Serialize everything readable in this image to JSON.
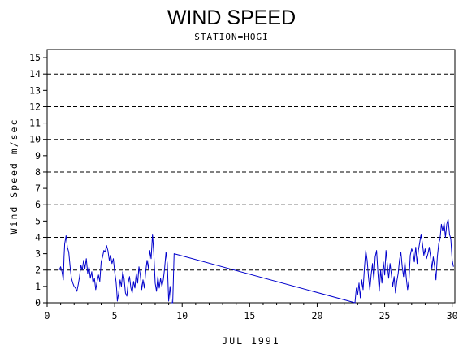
{
  "chart_data": {
    "type": "line",
    "title": "WIND SPEED",
    "subtitle": "STATION=HOGI",
    "xlabel": "JUL 1991",
    "ylabel": "Wind Speed m/sec",
    "xlim": [
      0,
      30.2
    ],
    "ylim": [
      0,
      15.5
    ],
    "x_ticks": [
      0,
      5,
      10,
      15,
      20,
      25,
      30
    ],
    "y_ticks": [
      0,
      1,
      2,
      3,
      4,
      5,
      6,
      7,
      8,
      9,
      10,
      11,
      12,
      13,
      14,
      15
    ],
    "grid": {
      "y_dashed_lines": [
        0,
        2,
        4,
        6,
        8,
        10,
        12,
        14
      ],
      "style": "dashed"
    },
    "legend": "none",
    "series": [
      {
        "color": "#0000cc",
        "points": [
          [
            0.9,
            2.0
          ],
          [
            1.0,
            2.2
          ],
          [
            1.1,
            1.9
          ],
          [
            1.2,
            1.4
          ],
          [
            1.25,
            2.8
          ],
          [
            1.3,
            3.6
          ],
          [
            1.4,
            4.1
          ],
          [
            1.5,
            3.4
          ],
          [
            1.6,
            3.1
          ],
          [
            1.7,
            2.2
          ],
          [
            1.8,
            1.5
          ],
          [
            1.9,
            1.2
          ],
          [
            2.0,
            1.0
          ],
          [
            2.1,
            0.9
          ],
          [
            2.2,
            0.7
          ],
          [
            2.3,
            1.1
          ],
          [
            2.4,
            1.6
          ],
          [
            2.5,
            2.3
          ],
          [
            2.6,
            2.0
          ],
          [
            2.7,
            2.6
          ],
          [
            2.8,
            2.1
          ],
          [
            2.9,
            2.7
          ],
          [
            3.0,
            1.8
          ],
          [
            3.1,
            2.2
          ],
          [
            3.2,
            1.5
          ],
          [
            3.3,
            1.9
          ],
          [
            3.4,
            1.2
          ],
          [
            3.5,
            1.5
          ],
          [
            3.6,
            0.8
          ],
          [
            3.7,
            1.3
          ],
          [
            3.8,
            1.7
          ],
          [
            3.9,
            1.3
          ],
          [
            4.0,
            2.5
          ],
          [
            4.1,
            2.8
          ],
          [
            4.2,
            3.2
          ],
          [
            4.3,
            3.1
          ],
          [
            4.4,
            3.5
          ],
          [
            4.5,
            3.2
          ],
          [
            4.6,
            2.6
          ],
          [
            4.7,
            2.9
          ],
          [
            4.8,
            2.4
          ],
          [
            4.9,
            2.7
          ],
          [
            5.0,
            1.9
          ],
          [
            5.1,
            1.3
          ],
          [
            5.15,
            0.8
          ],
          [
            5.2,
            0.1
          ],
          [
            5.3,
            0.6
          ],
          [
            5.4,
            1.4
          ],
          [
            5.5,
            1.0
          ],
          [
            5.6,
            1.9
          ],
          [
            5.7,
            1.5
          ],
          [
            5.8,
            0.6
          ],
          [
            5.9,
            0.4
          ],
          [
            6.0,
            1.2
          ],
          [
            6.1,
            1.6
          ],
          [
            6.2,
            0.9
          ],
          [
            6.3,
            0.6
          ],
          [
            6.4,
            1.3
          ],
          [
            6.5,
            0.9
          ],
          [
            6.6,
            1.8
          ],
          [
            6.7,
            1.2
          ],
          [
            6.8,
            2.2
          ],
          [
            6.9,
            1.7
          ],
          [
            7.0,
            0.8
          ],
          [
            7.1,
            1.4
          ],
          [
            7.2,
            0.9
          ],
          [
            7.3,
            1.9
          ],
          [
            7.4,
            2.6
          ],
          [
            7.5,
            2.1
          ],
          [
            7.6,
            3.2
          ],
          [
            7.7,
            2.7
          ],
          [
            7.8,
            4.2
          ],
          [
            7.9,
            3.0
          ],
          [
            8.0,
            1.2
          ],
          [
            8.1,
            0.7
          ],
          [
            8.2,
            1.6
          ],
          [
            8.3,
            0.9
          ],
          [
            8.4,
            1.5
          ],
          [
            8.5,
            1.0
          ],
          [
            8.6,
            1.4
          ],
          [
            8.7,
            2.1
          ],
          [
            8.8,
            3.1
          ],
          [
            8.9,
            2.4
          ],
          [
            9.0,
            0.1
          ],
          [
            9.1,
            1.0
          ],
          [
            9.2,
            0.0
          ],
          [
            9.3,
            0.0
          ],
          [
            9.4,
            3.0
          ],
          [
            22.8,
            0.0
          ],
          [
            22.9,
            0.9
          ],
          [
            23.0,
            0.5
          ],
          [
            23.1,
            1.2
          ],
          [
            23.2,
            0.3
          ],
          [
            23.3,
            1.4
          ],
          [
            23.4,
            0.8
          ],
          [
            23.5,
            2.1
          ],
          [
            23.6,
            3.2
          ],
          [
            23.7,
            2.6
          ],
          [
            23.8,
            1.6
          ],
          [
            23.9,
            0.8
          ],
          [
            24.0,
            1.7
          ],
          [
            24.1,
            2.4
          ],
          [
            24.2,
            1.4
          ],
          [
            24.3,
            2.8
          ],
          [
            24.4,
            3.2
          ],
          [
            24.5,
            1.8
          ],
          [
            24.6,
            0.7
          ],
          [
            24.7,
            2.0
          ],
          [
            24.8,
            1.2
          ],
          [
            24.9,
            2.5
          ],
          [
            25.0,
            1.7
          ],
          [
            25.1,
            3.2
          ],
          [
            25.2,
            2.3
          ],
          [
            25.3,
            1.5
          ],
          [
            25.4,
            2.4
          ],
          [
            25.5,
            1.7
          ],
          [
            25.6,
            1.0
          ],
          [
            25.7,
            1.6
          ],
          [
            25.8,
            0.6
          ],
          [
            25.9,
            1.3
          ],
          [
            26.0,
            1.8
          ],
          [
            26.1,
            2.6
          ],
          [
            26.2,
            3.1
          ],
          [
            26.3,
            2.2
          ],
          [
            26.4,
            1.6
          ],
          [
            26.5,
            2.5
          ],
          [
            26.6,
            1.5
          ],
          [
            26.7,
            0.8
          ],
          [
            26.8,
            1.4
          ],
          [
            26.9,
            2.9
          ],
          [
            27.0,
            3.3
          ],
          [
            27.1,
            3.1
          ],
          [
            27.2,
            2.5
          ],
          [
            27.3,
            3.4
          ],
          [
            27.4,
            2.4
          ],
          [
            27.5,
            3.2
          ],
          [
            27.6,
            3.7
          ],
          [
            27.7,
            4.2
          ],
          [
            27.8,
            3.6
          ],
          [
            27.9,
            2.9
          ],
          [
            28.0,
            3.3
          ],
          [
            28.1,
            2.7
          ],
          [
            28.2,
            3.0
          ],
          [
            28.3,
            3.4
          ],
          [
            28.4,
            2.8
          ],
          [
            28.5,
            2.1
          ],
          [
            28.6,
            2.8
          ],
          [
            28.7,
            2.2
          ],
          [
            28.8,
            1.4
          ],
          [
            28.9,
            2.8
          ],
          [
            29.0,
            3.6
          ],
          [
            29.1,
            3.9
          ],
          [
            29.2,
            4.8
          ],
          [
            29.3,
            4.4
          ],
          [
            29.4,
            4.9
          ],
          [
            29.5,
            4.0
          ],
          [
            29.6,
            4.8
          ],
          [
            29.7,
            5.1
          ],
          [
            29.8,
            4.2
          ],
          [
            29.9,
            3.9
          ],
          [
            30.0,
            2.6
          ],
          [
            30.1,
            2.2
          ]
        ]
      }
    ]
  }
}
